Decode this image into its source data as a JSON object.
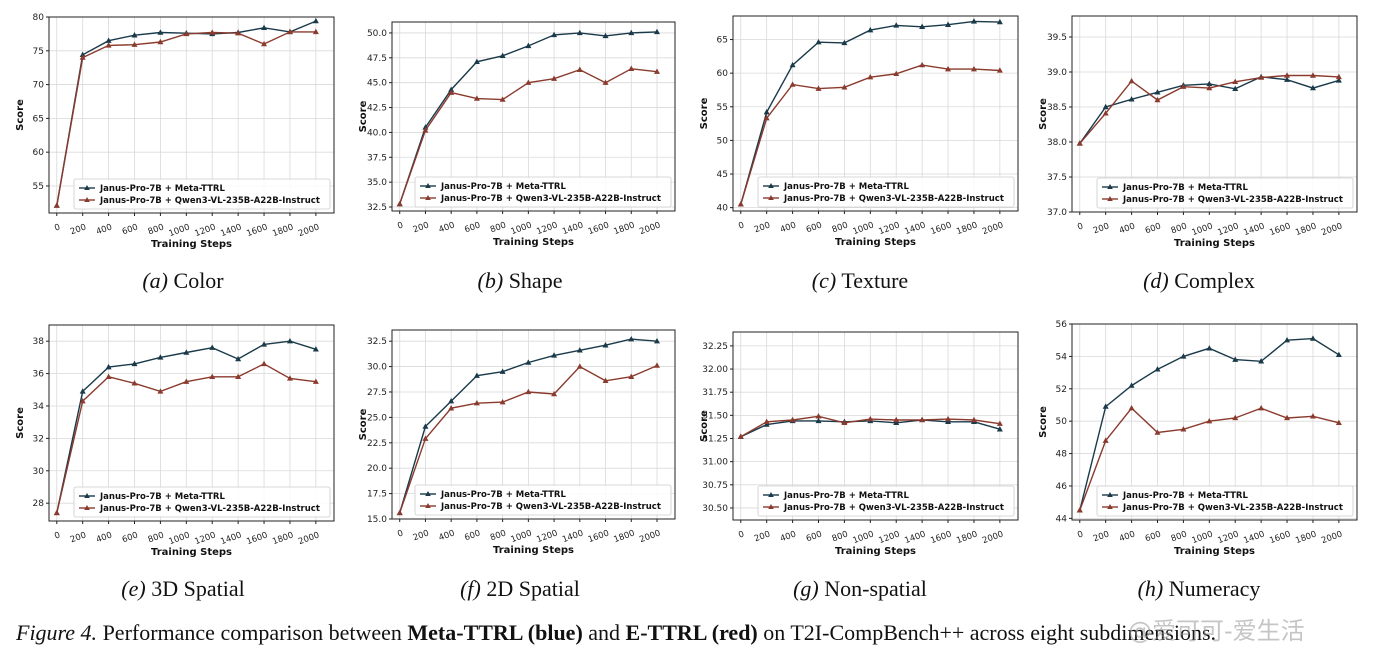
{
  "colors": {
    "meta": "#1a3a4a",
    "e": "#8b3a2e",
    "grid": "#d9d9d9",
    "axis": "#222222"
  },
  "legend": {
    "meta_label": "Janus-Pro-7B + Meta-TTRL",
    "e_label": "Janus-Pro-7B + Qwen3-VL-235B-A22B-Instruct"
  },
  "caption": {
    "fig": "Figure 4.",
    "part1": " Performance comparison between ",
    "meta": "Meta-TTRL (blue)",
    "part2": " and ",
    "e": "E-TTRL (red)",
    "part3": " on T2I-CompBench++ across eight subdimensions."
  },
  "watermark": "@爱可可-爱生活",
  "chart_data": [
    {
      "type": "line",
      "label": "(a)",
      "name": "Color",
      "xlabel": "Training Steps",
      "ylabel": "Score",
      "xlim": [
        -60,
        2140
      ],
      "ylim": [
        51,
        80
      ],
      "yticks": [
        55,
        60,
        65,
        70,
        75,
        80
      ],
      "ytick_labels": [
        "55",
        "60",
        "65",
        "70",
        "75",
        "80"
      ],
      "xticks": [
        0,
        200,
        400,
        600,
        800,
        1000,
        1200,
        1400,
        1600,
        1800,
        2000
      ],
      "x": [
        0,
        200,
        400,
        600,
        800,
        1000,
        1200,
        1400,
        1600,
        1800,
        2000
      ],
      "series": [
        {
          "name": "Janus-Pro-7B + Meta-TTRL",
          "values": [
            52.1,
            74.4,
            76.5,
            77.3,
            77.7,
            77.6,
            77.5,
            77.7,
            78.4,
            77.8,
            79.4
          ]
        },
        {
          "name": "Janus-Pro-7B + Qwen3-VL-235B-A22B-Instruct",
          "values": [
            52.1,
            74.0,
            75.8,
            75.9,
            76.3,
            77.5,
            77.7,
            77.6,
            76.0,
            77.8,
            77.8
          ]
        }
      ]
    },
    {
      "type": "line",
      "label": "(b)",
      "name": "Shape",
      "xlabel": "Training Steps",
      "ylabel": "Score",
      "xlim": [
        -60,
        2140
      ],
      "ylim": [
        32.1,
        51.1
      ],
      "yticks": [
        32.5,
        35.0,
        37.5,
        40.0,
        42.5,
        45.0,
        47.5,
        50.0
      ],
      "ytick_labels": [
        "32.5",
        "35.0",
        "37.5",
        "40.0",
        "42.5",
        "45.0",
        "47.5",
        "50.0"
      ],
      "xticks": [
        0,
        200,
        400,
        600,
        800,
        1000,
        1200,
        1400,
        1600,
        1800,
        2000
      ],
      "x": [
        0,
        200,
        400,
        600,
        800,
        1000,
        1200,
        1400,
        1600,
        1800,
        2000
      ],
      "series": [
        {
          "name": "Janus-Pro-7B + Meta-TTRL",
          "values": [
            32.8,
            40.5,
            44.3,
            47.1,
            47.7,
            48.7,
            49.8,
            50.0,
            49.7,
            50.0,
            50.1
          ]
        },
        {
          "name": "Janus-Pro-7B + Qwen3-VL-235B-A22B-Instruct",
          "values": [
            32.8,
            40.2,
            44.0,
            43.4,
            43.3,
            45.0,
            45.4,
            46.3,
            45.0,
            46.4,
            46.1
          ]
        }
      ]
    },
    {
      "type": "line",
      "label": "(c)",
      "name": "Texture",
      "xlabel": "Training Steps",
      "ylabel": "Score",
      "xlim": [
        -60,
        2140
      ],
      "ylim": [
        39.5,
        68.5
      ],
      "yticks": [
        40,
        45,
        50,
        55,
        60,
        65
      ],
      "ytick_labels": [
        "40",
        "45",
        "50",
        "55",
        "60",
        "65"
      ],
      "xticks": [
        0,
        200,
        400,
        600,
        800,
        1000,
        1200,
        1400,
        1600,
        1800,
        2000
      ],
      "x": [
        0,
        200,
        400,
        600,
        800,
        1000,
        1200,
        1400,
        1600,
        1800,
        2000
      ],
      "series": [
        {
          "name": "Janus-Pro-7B + Meta-TTRL",
          "values": [
            40.5,
            54.2,
            61.2,
            64.6,
            64.5,
            66.4,
            67.1,
            66.9,
            67.2,
            67.7,
            67.6
          ]
        },
        {
          "name": "Janus-Pro-7B + Qwen3-VL-235B-A22B-Instruct",
          "values": [
            40.5,
            53.3,
            58.3,
            57.7,
            57.9,
            59.4,
            59.9,
            61.2,
            60.6,
            60.6,
            60.4
          ]
        }
      ]
    },
    {
      "type": "line",
      "label": "(d)",
      "name": "Complex",
      "xlabel": "Training Steps",
      "ylabel": "Score",
      "xlim": [
        -60,
        2140
      ],
      "ylim": [
        37.0,
        39.8
      ],
      "yticks": [
        37.0,
        37.5,
        38.0,
        38.5,
        39.0,
        39.5
      ],
      "ytick_labels": [
        "37.0",
        "37.5",
        "38.0",
        "38.5",
        "39.0",
        "39.5"
      ],
      "xticks": [
        0,
        200,
        400,
        600,
        800,
        1000,
        1200,
        1400,
        1600,
        1800,
        2000
      ],
      "x": [
        0,
        200,
        400,
        600,
        800,
        1000,
        1200,
        1400,
        1600,
        1800,
        2000
      ],
      "series": [
        {
          "name": "Janus-Pro-7B + Meta-TTRL",
          "values": [
            37.98,
            38.5,
            38.61,
            38.71,
            38.81,
            38.83,
            38.76,
            38.93,
            38.89,
            38.77,
            38.88
          ]
        },
        {
          "name": "Janus-Pro-7B + Qwen3-VL-235B-A22B-Instruct",
          "values": [
            37.98,
            38.41,
            38.87,
            38.6,
            38.79,
            38.77,
            38.86,
            38.92,
            38.95,
            38.95,
            38.93
          ]
        }
      ]
    },
    {
      "type": "line",
      "label": "(e)",
      "name": "3D Spatial",
      "xlabel": "Training Steps",
      "ylabel": "Score",
      "xlim": [
        -60,
        2140
      ],
      "ylim": [
        26.9,
        39.0
      ],
      "yticks": [
        28,
        30,
        32,
        34,
        36,
        38
      ],
      "ytick_labels": [
        "28",
        "30",
        "32",
        "34",
        "36",
        "38"
      ],
      "xticks": [
        0,
        200,
        400,
        600,
        800,
        1000,
        1200,
        1400,
        1600,
        1800,
        2000
      ],
      "x": [
        0,
        200,
        400,
        600,
        800,
        1000,
        1200,
        1400,
        1600,
        1800,
        2000
      ],
      "series": [
        {
          "name": "Janus-Pro-7B + Meta-TTRL",
          "values": [
            27.4,
            34.9,
            36.4,
            36.6,
            37.0,
            37.3,
            37.6,
            36.9,
            37.8,
            38.0,
            37.5
          ]
        },
        {
          "name": "Janus-Pro-7B + Qwen3-VL-235B-A22B-Instruct",
          "values": [
            27.4,
            34.3,
            35.8,
            35.4,
            34.9,
            35.5,
            35.8,
            35.8,
            36.6,
            35.7,
            35.5
          ]
        }
      ]
    },
    {
      "type": "line",
      "label": "(f)",
      "name": "2D Spatial",
      "xlabel": "Training Steps",
      "ylabel": "Score",
      "xlim": [
        -60,
        2140
      ],
      "ylim": [
        15.0,
        33.6
      ],
      "yticks": [
        15.0,
        17.5,
        20.0,
        22.5,
        25.0,
        27.5,
        30.0,
        32.5
      ],
      "ytick_labels": [
        "15.0",
        "17.5",
        "20.0",
        "22.5",
        "25.0",
        "27.5",
        "30.0",
        "32.5"
      ],
      "xticks": [
        0,
        200,
        400,
        600,
        800,
        1000,
        1200,
        1400,
        1600,
        1800,
        2000
      ],
      "x": [
        0,
        200,
        400,
        600,
        800,
        1000,
        1200,
        1400,
        1600,
        1800,
        2000
      ],
      "series": [
        {
          "name": "Janus-Pro-7B + Meta-TTRL",
          "values": [
            15.6,
            24.1,
            26.6,
            29.1,
            29.5,
            30.4,
            31.1,
            31.6,
            32.1,
            32.7,
            32.5
          ]
        },
        {
          "name": "Janus-Pro-7B + Qwen3-VL-235B-A22B-Instruct",
          "values": [
            15.6,
            22.9,
            25.9,
            26.4,
            26.5,
            27.5,
            27.3,
            30.0,
            28.6,
            29.0,
            30.1
          ]
        }
      ]
    },
    {
      "type": "line",
      "label": "(g)",
      "name": "Non-spatial",
      "xlabel": "Training Steps",
      "ylabel": "Score",
      "xlim": [
        -60,
        2140
      ],
      "ylim": [
        30.37,
        32.4
      ],
      "yticks": [
        30.5,
        30.75,
        31.0,
        31.25,
        31.5,
        31.75,
        32.0,
        32.25
      ],
      "ytick_labels": [
        "30.50",
        "30.75",
        "31.00",
        "31.25",
        "31.50",
        "31.75",
        "32.00",
        "32.25"
      ],
      "xticks": [
        0,
        200,
        400,
        600,
        800,
        1000,
        1200,
        1400,
        1600,
        1800,
        2000
      ],
      "x": [
        0,
        200,
        400,
        600,
        800,
        1000,
        1200,
        1400,
        1600,
        1800,
        2000
      ],
      "series": [
        {
          "name": "Janus-Pro-7B + Meta-TTRL",
          "values": [
            31.27,
            31.4,
            31.44,
            31.44,
            31.43,
            31.44,
            31.42,
            31.45,
            31.43,
            31.43,
            31.35
          ]
        },
        {
          "name": "Janus-Pro-7B + Qwen3-VL-235B-A22B-Instruct",
          "values": [
            31.27,
            31.43,
            31.45,
            31.49,
            31.42,
            31.46,
            31.45,
            31.45,
            31.46,
            31.45,
            31.41
          ]
        }
      ]
    },
    {
      "type": "line",
      "label": "(h)",
      "name": "Numeracy",
      "xlabel": "Training Steps",
      "ylabel": "Score",
      "xlim": [
        -60,
        2140
      ],
      "ylim": [
        43.9,
        56.0
      ],
      "yticks": [
        44,
        46,
        48,
        50,
        52,
        54,
        56
      ],
      "ytick_labels": [
        "44",
        "46",
        "48",
        "50",
        "52",
        "54",
        "56"
      ],
      "xticks": [
        0,
        200,
        400,
        600,
        800,
        1000,
        1200,
        1400,
        1600,
        1800,
        2000
      ],
      "x": [
        0,
        200,
        400,
        600,
        800,
        1000,
        1200,
        1400,
        1600,
        1800,
        2000
      ],
      "series": [
        {
          "name": "Janus-Pro-7B + Meta-TTRL",
          "values": [
            44.5,
            50.9,
            52.2,
            53.2,
            54.0,
            54.5,
            53.8,
            53.7,
            55.0,
            55.1,
            54.1
          ]
        },
        {
          "name": "Janus-Pro-7B + Qwen3-VL-235B-A22B-Instruct",
          "values": [
            44.5,
            48.8,
            50.8,
            49.3,
            49.5,
            50.0,
            50.2,
            50.8,
            50.2,
            50.3,
            49.9
          ]
        }
      ]
    }
  ]
}
